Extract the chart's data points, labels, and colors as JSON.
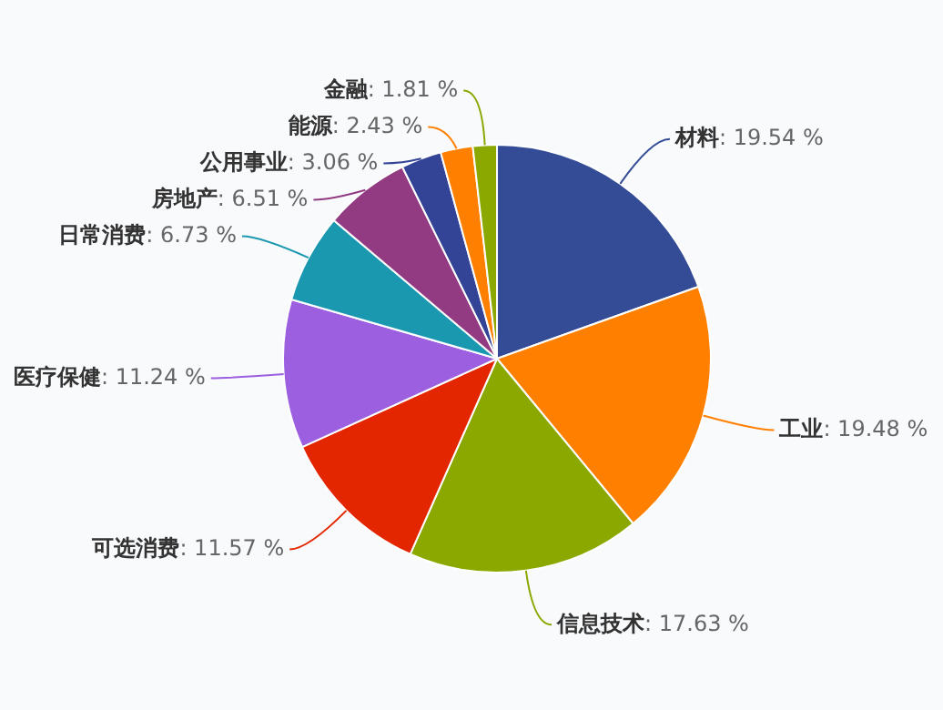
{
  "chart_data": {
    "type": "pie",
    "categories": [
      "材料",
      "工业",
      "信息技术",
      "可选消费",
      "医疗保健",
      "日常消费",
      "房地产",
      "公用事业",
      "能源",
      "金融"
    ],
    "values": [
      19.54,
      19.48,
      17.63,
      11.57,
      11.24,
      6.73,
      6.51,
      3.06,
      2.43,
      1.81
    ],
    "colors": [
      "#344b96",
      "#ff8000",
      "#8aa800",
      "#e32500",
      "#9b5fe0",
      "#1a98b0",
      "#933b82",
      "#334396",
      "#ff8000",
      "#8aa800"
    ],
    "value_labels": [
      ": 19.54 %",
      ": 19.48 %",
      ": 17.63 %",
      ": 11.57 %",
      ": 11.24 %",
      ": 6.73 %",
      ": 6.51 %",
      ": 3.06 %",
      ": 2.43 %",
      ": 1.81 %"
    ],
    "legend": false
  }
}
